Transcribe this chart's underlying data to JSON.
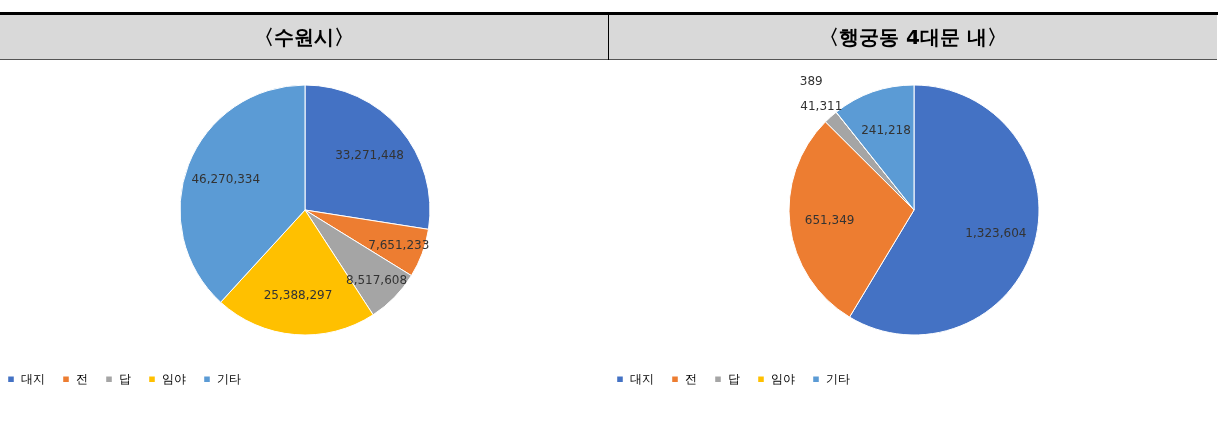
{
  "chart_data": [
    {
      "type": "pie",
      "title": "〈수원시〉",
      "categories": [
        "대지",
        "전",
        "답",
        "임야",
        "기타"
      ],
      "values": [
        33271448,
        7651233,
        8517608,
        25388297,
        46270334
      ],
      "value_labels": [
        "33,271,448",
        "7,651,233",
        "8,517,608",
        "25,388,297",
        "46,270,334"
      ],
      "colors": [
        "#4472c4",
        "#ed7d31",
        "#a5a5a5",
        "#ffc000",
        "#5b9bd5"
      ],
      "legend": "bottom"
    },
    {
      "type": "pie",
      "title": "〈행궁동 4대문 내〉",
      "categories": [
        "대지",
        "전",
        "답",
        "임야",
        "기타"
      ],
      "values": [
        1323604,
        651349,
        41311,
        389,
        241218
      ],
      "value_labels": [
        "1,323,604",
        "651,349",
        "41,311",
        "389",
        "241,218"
      ],
      "colors": [
        "#4472c4",
        "#ed7d31",
        "#a5a5a5",
        "#ffc000",
        "#5b9bd5"
      ],
      "legend": "bottom"
    }
  ]
}
